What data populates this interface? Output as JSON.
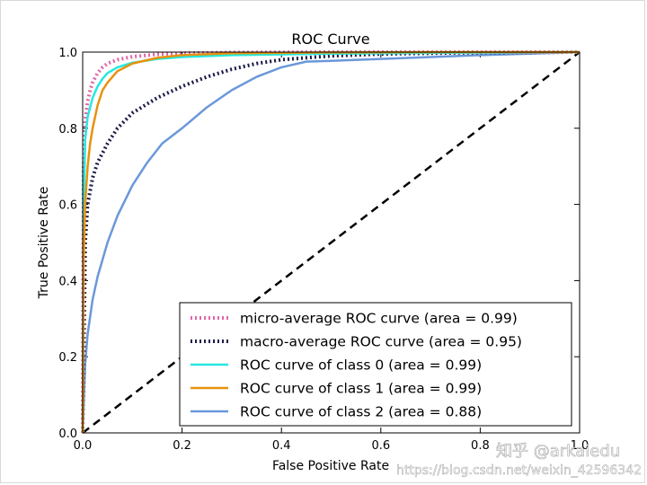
{
  "chart_data": {
    "type": "line",
    "title": "ROC Curve",
    "xlabel": "False Positive Rate",
    "ylabel": "True Positive Rate",
    "xlim": [
      0.0,
      1.0
    ],
    "ylim": [
      0.0,
      1.0
    ],
    "xticks": [
      "0.0",
      "0.2",
      "0.4",
      "0.6",
      "0.8",
      "1.0"
    ],
    "yticks": [
      "0.0",
      "0.2",
      "0.4",
      "0.6",
      "0.8",
      "1.0"
    ],
    "legend_position": "lower-right",
    "series": [
      {
        "name": "micro-average ROC curve (area = 0.99)",
        "color": "#e066a8",
        "style": "dotted",
        "x": [
          0,
          0.002,
          0.005,
          0.01,
          0.015,
          0.02,
          0.03,
          0.04,
          0.05,
          0.07,
          0.1,
          0.15,
          0.2,
          0.3,
          0.5,
          0.7,
          1.0
        ],
        "y": [
          0,
          0.7,
          0.82,
          0.87,
          0.9,
          0.92,
          0.945,
          0.96,
          0.97,
          0.98,
          0.988,
          0.994,
          0.997,
          0.999,
          1.0,
          1.0,
          1.0
        ]
      },
      {
        "name": "macro-average ROC curve (area = 0.95)",
        "color": "#1c1c4a",
        "style": "dotted",
        "x": [
          0,
          0.005,
          0.01,
          0.02,
          0.03,
          0.05,
          0.07,
          0.1,
          0.15,
          0.2,
          0.25,
          0.3,
          0.35,
          0.4,
          0.5,
          0.6,
          0.8,
          1.0
        ],
        "y": [
          0,
          0.5,
          0.6,
          0.67,
          0.71,
          0.76,
          0.8,
          0.84,
          0.88,
          0.91,
          0.935,
          0.955,
          0.97,
          0.98,
          0.99,
          0.995,
          0.999,
          1.0
        ]
      },
      {
        "name": "ROC curve of class 0 (area = 0.99)",
        "color": "#26e8e0",
        "style": "solid",
        "x": [
          0,
          0.002,
          0.005,
          0.01,
          0.02,
          0.03,
          0.04,
          0.05,
          0.07,
          0.1,
          0.15,
          0.2,
          0.3,
          0.5,
          0.7,
          1.0
        ],
        "y": [
          0,
          0.6,
          0.77,
          0.83,
          0.88,
          0.91,
          0.93,
          0.945,
          0.96,
          0.972,
          0.982,
          0.987,
          0.992,
          0.996,
          0.998,
          1.0
        ]
      },
      {
        "name": "ROC curve of class 1 (area = 0.99)",
        "color": "#e8920f",
        "style": "solid",
        "x": [
          0,
          0.002,
          0.005,
          0.01,
          0.015,
          0.02,
          0.03,
          0.04,
          0.05,
          0.07,
          0.1,
          0.15,
          0.2,
          0.3,
          0.5,
          0.7,
          1.0
        ],
        "y": [
          0,
          0.45,
          0.6,
          0.7,
          0.76,
          0.8,
          0.86,
          0.9,
          0.92,
          0.95,
          0.97,
          0.985,
          0.992,
          0.997,
          0.999,
          1.0,
          1.0
        ]
      },
      {
        "name": "ROC curve of class 2 (area = 0.88)",
        "color": "#6a98da",
        "style": "solid",
        "x": [
          0,
          0.005,
          0.01,
          0.02,
          0.03,
          0.05,
          0.07,
          0.1,
          0.13,
          0.16,
          0.2,
          0.25,
          0.3,
          0.35,
          0.4,
          0.45,
          0.5,
          0.6,
          0.7,
          0.8,
          0.9,
          1.0
        ],
        "y": [
          0,
          0.18,
          0.26,
          0.35,
          0.41,
          0.5,
          0.57,
          0.65,
          0.71,
          0.76,
          0.8,
          0.855,
          0.9,
          0.935,
          0.96,
          0.975,
          0.977,
          0.982,
          0.987,
          0.992,
          0.996,
          1.0
        ]
      }
    ],
    "reference_line": {
      "x": [
        0,
        1
      ],
      "y": [
        0,
        1
      ],
      "color": "#000000",
      "style": "dashed"
    }
  },
  "watermark": {
    "logo_text": "知乎 @arkaiedu",
    "url_text": "https://blog.csdn.net/weixin_42596342"
  }
}
